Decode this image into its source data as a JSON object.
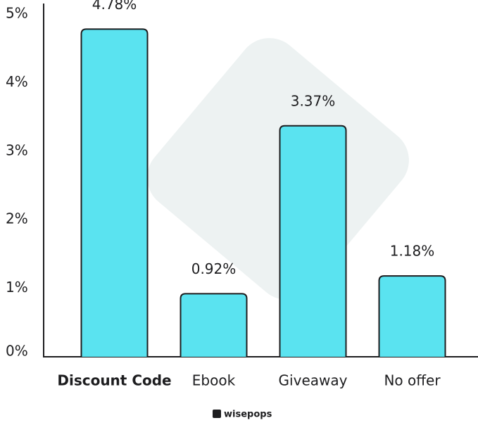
{
  "chart_data": {
    "type": "bar",
    "categories": [
      "Discount Code",
      "Ebook",
      "Giveaway",
      "No offer"
    ],
    "values": [
      4.78,
      0.92,
      3.37,
      1.18
    ],
    "value_labels": [
      "4.78%",
      "0.92%",
      "3.37%",
      "1.18%"
    ],
    "color": "#5ae3f0",
    "ylim": [
      0,
      5
    ],
    "yticks": [
      {
        "value": 0,
        "label": "0%"
      },
      {
        "value": 1,
        "label": "1%"
      },
      {
        "value": 2,
        "label": "2%"
      },
      {
        "value": 3,
        "label": "3%"
      },
      {
        "value": 4,
        "label": "4%"
      },
      {
        "value": 5,
        "label": "5%"
      }
    ]
  },
  "watermark": "wisepops"
}
